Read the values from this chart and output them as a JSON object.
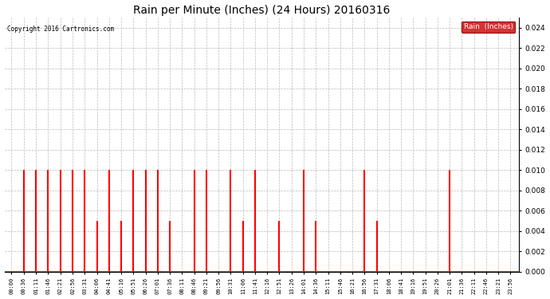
{
  "title": "Rain per Minute (Inches) (24 Hours) 20160316",
  "copyright": "Copyright 2016 Cartronics.com",
  "legend_label": "Rain  (Inches)",
  "bar_color": "#ff0000",
  "legend_bg": "#cc0000",
  "legend_text_color": "#ffffff",
  "ylim": [
    0,
    0.025
  ],
  "yticks": [
    0.0,
    0.002,
    0.004,
    0.006,
    0.008,
    0.01,
    0.012,
    0.014,
    0.016,
    0.018,
    0.02,
    0.022,
    0.024
  ],
  "background_color": "#ffffff",
  "grid_color": "#bbbbbb",
  "xtick_labels": [
    "00:00",
    "00:36",
    "01:11",
    "01:46",
    "02:21",
    "02:56",
    "03:31",
    "04:06",
    "04:41",
    "05:16",
    "05:51",
    "06:26",
    "07:01",
    "07:36",
    "08:11",
    "08:46",
    "09:21",
    "09:56",
    "10:31",
    "11:06",
    "11:41",
    "12:16",
    "12:51",
    "13:26",
    "14:01",
    "14:36",
    "15:11",
    "15:46",
    "16:21",
    "16:56",
    "17:31",
    "18:06",
    "18:41",
    "19:16",
    "19:51",
    "20:26",
    "21:01",
    "21:36",
    "22:11",
    "22:46",
    "23:21",
    "23:56"
  ],
  "rain_values": [
    0.0,
    0.01,
    0.01,
    0.01,
    0.01,
    0.01,
    0.01,
    0.005,
    0.01,
    0.005,
    0.01,
    0.01,
    0.01,
    0.005,
    0.0,
    0.01,
    0.01,
    0.0,
    0.01,
    0.005,
    0.01,
    0.0,
    0.005,
    0.0,
    0.01,
    0.005,
    0.0,
    0.0,
    0.0,
    0.01,
    0.005,
    0.0,
    0.0,
    0.0,
    0.0,
    0.0,
    0.01,
    0.0,
    0.0,
    0.0,
    0.0,
    0.0
  ]
}
